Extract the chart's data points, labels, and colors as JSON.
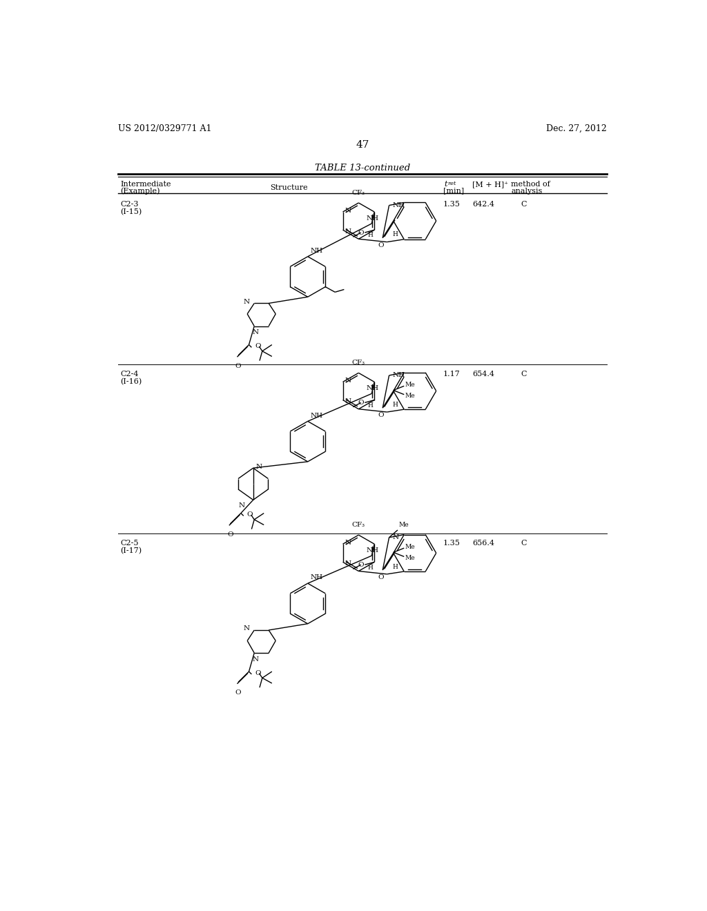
{
  "page_header_left": "US 2012/0329771 A1",
  "page_header_right": "Dec. 27, 2012",
  "page_number": "47",
  "table_title": "TABLE 13-continued",
  "background_color": "#ffffff",
  "text_color": "#000000",
  "rows": [
    {
      "intermediate": "C2-3",
      "example": "(I-15)",
      "t_ret": "1.35",
      "mh": "642.4",
      "method": "C"
    },
    {
      "intermediate": "C2-4",
      "example": "(I-16)",
      "t_ret": "1.17",
      "mh": "654.4",
      "method": "C"
    },
    {
      "intermediate": "C2-5",
      "example": "(I-17)",
      "t_ret": "1.35",
      "mh": "656.4",
      "method": "C"
    }
  ]
}
